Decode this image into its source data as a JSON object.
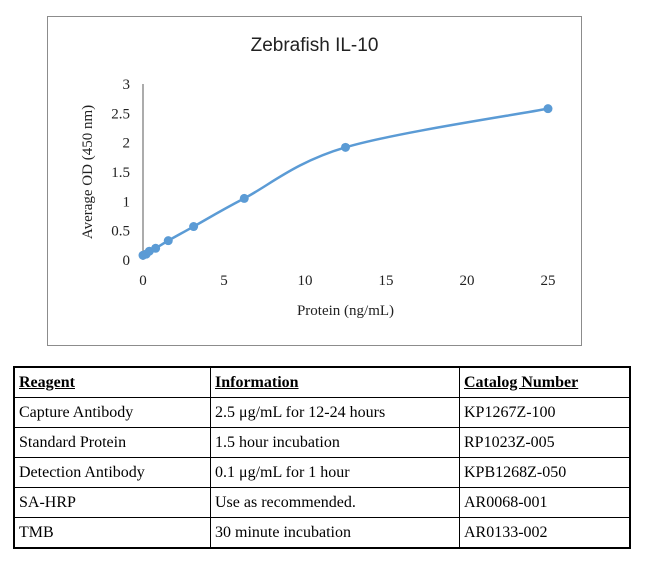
{
  "chart_data": {
    "type": "line",
    "title": "Zebrafish IL-10",
    "xlabel": "Protein (ng/mL)",
    "ylabel": "Average OD (450 nm)",
    "xlim": [
      0,
      25
    ],
    "ylim": [
      0,
      3
    ],
    "xticks": [
      0,
      5,
      10,
      15,
      20,
      25
    ],
    "yticks": [
      0,
      0.5,
      1,
      1.5,
      2,
      2.5,
      3
    ],
    "ytick_labels": [
      "0",
      "0.5",
      "1",
      "1.5",
      "2",
      "2.5",
      "3"
    ],
    "grid": false,
    "series": [
      {
        "color": "#5b9bd5",
        "x": [
          0,
          0.195,
          0.39,
          0.78,
          1.56,
          3.125,
          6.25,
          12.5,
          25
        ],
        "y": [
          0.08,
          0.1,
          0.15,
          0.2,
          0.33,
          0.57,
          1.05,
          1.92,
          2.58
        ]
      }
    ]
  },
  "table": {
    "headers": [
      "Reagent",
      "Information",
      "Catalog Number"
    ],
    "rows": [
      [
        "Capture Antibody",
        "2.5 μg/mL for 12-24 hours",
        "KP1267Z-100"
      ],
      [
        "Standard Protein",
        "1.5 hour incubation",
        "RP1023Z-005"
      ],
      [
        "Detection Antibody",
        "0.1 μg/mL for 1 hour",
        "KPB1268Z-050"
      ],
      [
        "SA-HRP",
        "Use as recommended.",
        "AR0068-001"
      ],
      [
        "TMB",
        "30 minute incubation",
        "AR0133-002"
      ]
    ]
  }
}
